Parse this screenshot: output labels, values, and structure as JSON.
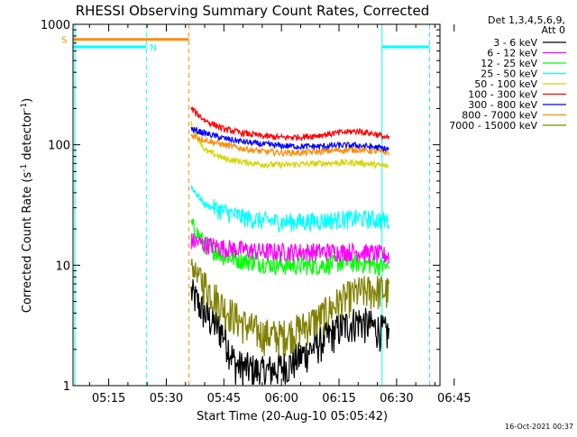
{
  "chart_data": {
    "type": "line",
    "title": "RHESSI Observing Summary Count Rates, Corrected",
    "xlabel": "Start Time (20-Aug-10 05:05:42)",
    "ylabel_main": "Corrected Count Rate (s",
    "ylabel_sup1": "-1",
    "ylabel_mid": " detector",
    "ylabel_sup2": "-1",
    "ylabel_end": ")",
    "y_scale": "log",
    "ylim": [
      1,
      1000
    ],
    "xlim_minutes": [
      5.7,
      101.3
    ],
    "x_tick_labels": [
      "05:15",
      "05:30",
      "05:45",
      "06:00",
      "06:15",
      "06:30",
      "06:45"
    ],
    "x_tick_minutes": [
      15,
      30,
      45,
      60,
      75,
      90,
      105
    ],
    "y_tick_labels": [
      "1",
      "10",
      "100",
      "1000"
    ],
    "y_tick_values": [
      1,
      10,
      100,
      1000
    ],
    "legend_header": [
      "Det 1,3,4,5,6,9,",
      "Att 0"
    ],
    "legend_position": "right",
    "grid": false,
    "series": [
      {
        "name": "3 - 6 keV",
        "color": "#000000",
        "points": [
          [
            36.5,
            6
          ],
          [
            40,
            4
          ],
          [
            45,
            2.7
          ],
          [
            48,
            1.5
          ],
          [
            55,
            1.3
          ],
          [
            62,
            1.5
          ],
          [
            70,
            2.3
          ],
          [
            75,
            3
          ],
          [
            80,
            3.5
          ],
          [
            85,
            3
          ],
          [
            88,
            2.7
          ]
        ]
      },
      {
        "name": "6 - 12 keV",
        "color": "#ff00ff",
        "points": [
          [
            36.5,
            16
          ],
          [
            40,
            15
          ],
          [
            45,
            14
          ],
          [
            50,
            13.5
          ],
          [
            55,
            13
          ],
          [
            60,
            13
          ],
          [
            65,
            13
          ],
          [
            70,
            13
          ],
          [
            75,
            13
          ],
          [
            80,
            13
          ],
          [
            85,
            12.5
          ],
          [
            88,
            12
          ]
        ]
      },
      {
        "name": "12 - 25 keV",
        "color": "#00ff00",
        "points": [
          [
            36.5,
            22
          ],
          [
            40,
            15
          ],
          [
            45,
            12
          ],
          [
            50,
            11
          ],
          [
            55,
            10.5
          ],
          [
            60,
            10
          ],
          [
            65,
            10
          ],
          [
            70,
            10
          ],
          [
            75,
            10.5
          ],
          [
            80,
            10.5
          ],
          [
            85,
            10
          ],
          [
            88,
            9.5
          ]
        ]
      },
      {
        "name": "25 - 50 keV",
        "color": "#00ffff",
        "points": [
          [
            36.5,
            45
          ],
          [
            40,
            32
          ],
          [
            45,
            28
          ],
          [
            50,
            25
          ],
          [
            55,
            23.5
          ],
          [
            60,
            23
          ],
          [
            65,
            23
          ],
          [
            70,
            23.5
          ],
          [
            75,
            24
          ],
          [
            80,
            24.5
          ],
          [
            85,
            24
          ],
          [
            88,
            23.5
          ]
        ]
      },
      {
        "name": "50 - 100 keV",
        "color": "#d4d400",
        "points": [
          [
            36.5,
            150
          ],
          [
            40,
            90
          ],
          [
            45,
            77
          ],
          [
            50,
            72
          ],
          [
            55,
            69
          ],
          [
            60,
            68
          ],
          [
            65,
            69
          ],
          [
            70,
            70
          ],
          [
            75,
            71
          ],
          [
            80,
            71
          ],
          [
            85,
            68
          ],
          [
            88,
            66
          ]
        ]
      },
      {
        "name": "100 - 300 keV",
        "color": "#ff0000",
        "points": [
          [
            36.5,
            200
          ],
          [
            40,
            160
          ],
          [
            45,
            135
          ],
          [
            50,
            125
          ],
          [
            55,
            118
          ],
          [
            60,
            115
          ],
          [
            65,
            116
          ],
          [
            70,
            120
          ],
          [
            75,
            126
          ],
          [
            80,
            130
          ],
          [
            85,
            122
          ],
          [
            88,
            112
          ]
        ]
      },
      {
        "name": "300 - 800 keV",
        "color": "#0000ff",
        "points": [
          [
            36.5,
            135
          ],
          [
            40,
            125
          ],
          [
            45,
            113
          ],
          [
            50,
            106
          ],
          [
            55,
            101
          ],
          [
            60,
            98
          ],
          [
            65,
            97
          ],
          [
            70,
            97
          ],
          [
            75,
            99
          ],
          [
            80,
            99
          ],
          [
            85,
            95
          ],
          [
            88,
            92
          ]
        ]
      },
      {
        "name": "800 - 7000 keV",
        "color": "#ff8c00",
        "points": [
          [
            36.5,
            120
          ],
          [
            40,
            110
          ],
          [
            45,
            100
          ],
          [
            50,
            93
          ],
          [
            55,
            88
          ],
          [
            60,
            86
          ],
          [
            65,
            86
          ],
          [
            70,
            88
          ],
          [
            75,
            90
          ],
          [
            80,
            91
          ],
          [
            85,
            88
          ],
          [
            88,
            86
          ]
        ]
      },
      {
        "name": "7000 - 15000 keV",
        "color": "#808000",
        "points": [
          [
            36.5,
            10
          ],
          [
            40,
            7
          ],
          [
            45,
            4.5
          ],
          [
            50,
            3.3
          ],
          [
            55,
            2.7
          ],
          [
            60,
            2.6
          ],
          [
            65,
            3
          ],
          [
            70,
            3.7
          ],
          [
            75,
            5
          ],
          [
            80,
            6
          ],
          [
            85,
            6.3
          ],
          [
            88,
            6
          ]
        ]
      }
    ],
    "flags": [
      {
        "label": "S",
        "color": "#ff8c00",
        "level": 750,
        "start": 5.7,
        "end": 35.9
      },
      {
        "label": "N",
        "color": "#00ffff",
        "level": 650,
        "start": 5.7,
        "end": 24.8
      },
      {
        "label": "",
        "color": "#00ffff",
        "level": 650,
        "start": 86.2,
        "end": 98.6
      }
    ],
    "markers": [
      {
        "color": "#00ffff",
        "minute": 6.2,
        "style": "solid"
      },
      {
        "color": "#00ffff",
        "minute": 24.8,
        "style": "dashed"
      },
      {
        "color": "#ff8c00",
        "minute": 35.9,
        "style": "dashed"
      },
      {
        "color": "#00ffff",
        "minute": 86.2,
        "style": "solid"
      },
      {
        "color": "#00ffff",
        "minute": 98.6,
        "style": "dashed"
      }
    ],
    "timestamp": "16-Oct-2021 00:37"
  }
}
